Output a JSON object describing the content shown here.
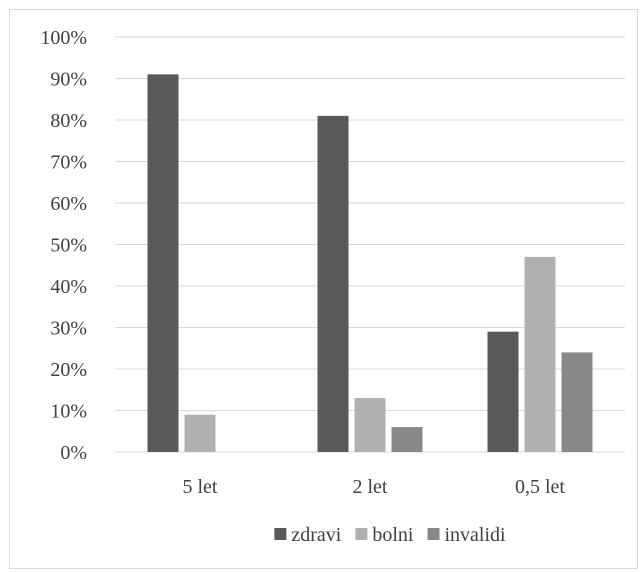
{
  "chart_data": {
    "type": "bar",
    "title": "",
    "xlabel": "",
    "ylabel": "",
    "categories": [
      "5 let",
      "2 let",
      "0,5 let"
    ],
    "series": [
      {
        "name": "zdravi",
        "color": "#595959",
        "values": [
          91,
          81,
          29
        ]
      },
      {
        "name": "bolni",
        "color": "#b0b0b0",
        "values": [
          9,
          13,
          47
        ]
      },
      {
        "name": "invalidi",
        "color": "#888888",
        "values": [
          0,
          6,
          24
        ]
      }
    ],
    "ylim": [
      0,
      100
    ],
    "ytick_step": 10,
    "ytick_labels": [
      "0%",
      "10%",
      "20%",
      "30%",
      "40%",
      "50%",
      "60%",
      "70%",
      "80%",
      "90%",
      "100%"
    ],
    "grid": true,
    "gridline_color": "#d9d9d9",
    "legend_position": "bottom"
  }
}
